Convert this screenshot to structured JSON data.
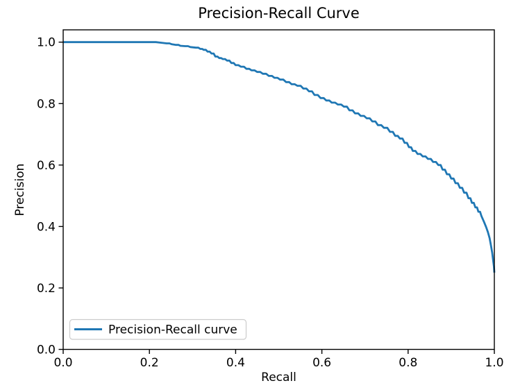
{
  "chart_data": {
    "type": "line",
    "title": "Precision-Recall Curve",
    "xlabel": "Recall",
    "ylabel": "Precision",
    "xlim": [
      0.0,
      1.0
    ],
    "ylim": [
      0.0,
      1.04
    ],
    "grid": false,
    "x_ticks": [
      {
        "value": 0.0,
        "label": "0.0"
      },
      {
        "value": 0.2,
        "label": "0.2"
      },
      {
        "value": 0.4,
        "label": "0.4"
      },
      {
        "value": 0.6,
        "label": "0.6"
      },
      {
        "value": 0.8,
        "label": "0.8"
      },
      {
        "value": 1.0,
        "label": "1.0"
      }
    ],
    "y_ticks": [
      {
        "value": 0.0,
        "label": "0.0"
      },
      {
        "value": 0.2,
        "label": "0.2"
      },
      {
        "value": 0.4,
        "label": "0.4"
      },
      {
        "value": 0.6,
        "label": "0.6"
      },
      {
        "value": 0.8,
        "label": "0.8"
      },
      {
        "value": 1.0,
        "label": "1.0"
      }
    ],
    "legend": {
      "position": "lower-left",
      "label": "Precision-Recall curve"
    },
    "colors": {
      "line": "#1f77b4",
      "text": "#000000",
      "spine": "#000000",
      "legend_border": "#cccccc",
      "background": "#ffffff"
    },
    "series": [
      {
        "name": "Precision-Recall curve",
        "color": "#1f77b4",
        "points": [
          [
            0.0,
            1.0
          ],
          [
            0.1,
            1.0
          ],
          [
            0.215,
            1.0
          ],
          [
            0.228,
            0.998
          ],
          [
            0.24,
            0.996
          ],
          [
            0.252,
            0.993
          ],
          [
            0.262,
            0.991
          ],
          [
            0.272,
            0.988
          ],
          [
            0.283,
            0.987
          ],
          [
            0.295,
            0.984
          ],
          [
            0.308,
            0.982
          ],
          [
            0.318,
            0.978
          ],
          [
            0.326,
            0.975
          ],
          [
            0.335,
            0.969
          ],
          [
            0.344,
            0.963
          ],
          [
            0.353,
            0.953
          ],
          [
            0.362,
            0.948
          ],
          [
            0.37,
            0.945
          ],
          [
            0.38,
            0.94
          ],
          [
            0.39,
            0.932
          ],
          [
            0.4,
            0.925
          ],
          [
            0.412,
            0.92
          ],
          [
            0.425,
            0.913
          ],
          [
            0.437,
            0.908
          ],
          [
            0.45,
            0.903
          ],
          [
            0.463,
            0.897
          ],
          [
            0.477,
            0.89
          ],
          [
            0.49,
            0.884
          ],
          [
            0.503,
            0.878
          ],
          [
            0.517,
            0.87
          ],
          [
            0.53,
            0.863
          ],
          [
            0.543,
            0.858
          ],
          [
            0.557,
            0.849
          ],
          [
            0.57,
            0.84
          ],
          [
            0.583,
            0.828
          ],
          [
            0.597,
            0.818
          ],
          [
            0.61,
            0.81
          ],
          [
            0.623,
            0.803
          ],
          [
            0.637,
            0.797
          ],
          [
            0.651,
            0.79
          ],
          [
            0.664,
            0.778
          ],
          [
            0.677,
            0.768
          ],
          [
            0.69,
            0.76
          ],
          [
            0.704,
            0.752
          ],
          [
            0.717,
            0.742
          ],
          [
            0.73,
            0.73
          ],
          [
            0.744,
            0.721
          ],
          [
            0.758,
            0.708
          ],
          [
            0.77,
            0.695
          ],
          [
            0.781,
            0.686
          ],
          [
            0.792,
            0.672
          ],
          [
            0.802,
            0.658
          ],
          [
            0.811,
            0.646
          ],
          [
            0.822,
            0.636
          ],
          [
            0.834,
            0.628
          ],
          [
            0.846,
            0.62
          ],
          [
            0.858,
            0.61
          ],
          [
            0.87,
            0.6
          ],
          [
            0.88,
            0.585
          ],
          [
            0.89,
            0.57
          ],
          [
            0.9,
            0.556
          ],
          [
            0.91,
            0.541
          ],
          [
            0.92,
            0.526
          ],
          [
            0.93,
            0.51
          ],
          [
            0.94,
            0.492
          ],
          [
            0.948,
            0.477
          ],
          [
            0.956,
            0.462
          ],
          [
            0.963,
            0.448
          ],
          [
            0.97,
            0.434
          ],
          [
            0.976,
            0.415
          ],
          [
            0.981,
            0.398
          ],
          [
            0.985,
            0.382
          ],
          [
            0.989,
            0.362
          ],
          [
            0.992,
            0.34
          ],
          [
            0.995,
            0.315
          ],
          [
            0.997,
            0.293
          ],
          [
            0.999,
            0.27
          ],
          [
            1.0,
            0.25
          ]
        ]
      }
    ]
  }
}
